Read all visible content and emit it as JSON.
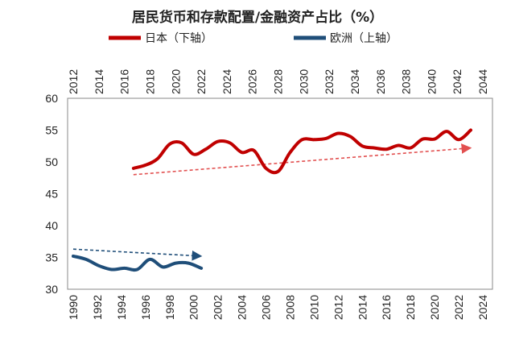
{
  "chart_data": {
    "type": "line",
    "title": "居民货币和存款配置/金融资产占比（%）",
    "ylim": [
      30,
      60
    ],
    "yticks": [
      "30",
      "35",
      "40",
      "45",
      "50",
      "55",
      "60"
    ],
    "bottom_axis": {
      "range": [
        1990,
        2024
      ],
      "ticks": [
        "1990",
        "1992",
        "1994",
        "1996",
        "1998",
        "2000",
        "2002",
        "2004",
        "2006",
        "2008",
        "2010",
        "2012",
        "2014",
        "2016",
        "2018",
        "2020",
        "2022",
        "2024"
      ]
    },
    "top_axis": {
      "range": [
        2012,
        2044
      ],
      "ticks": [
        "2012",
        "2014",
        "2016",
        "2018",
        "2020",
        "2022",
        "2024",
        "2026",
        "2028",
        "2030",
        "2032",
        "2034",
        "2036",
        "2038",
        "2040",
        "2042",
        "2044"
      ]
    },
    "series": [
      {
        "name": "日本（下轴）",
        "axis": "bottom",
        "color": "#c00000",
        "x": [
          1995,
          1996,
          1997,
          1998,
          1999,
          2000,
          2001,
          2002,
          2003,
          2004,
          2005,
          2006,
          2007,
          2008,
          2009,
          2010,
          2011,
          2012,
          2013,
          2014,
          2015,
          2016,
          2017,
          2018,
          2019,
          2020,
          2021,
          2022,
          2023
        ],
        "values": [
          49.0,
          49.5,
          50.5,
          52.8,
          53.0,
          51.2,
          52.0,
          53.2,
          53.0,
          51.5,
          51.8,
          49.0,
          48.5,
          51.5,
          53.5,
          53.5,
          53.7,
          54.5,
          54.0,
          52.5,
          52.2,
          52.0,
          52.6,
          52.2,
          53.6,
          53.6,
          54.8,
          53.5,
          55.0
        ],
        "trend": {
          "x": [
            1995,
            2023
          ],
          "values": [
            48.0,
            52.2
          ]
        }
      },
      {
        "name": "欧洲（上轴）",
        "axis": "top",
        "color": "#1f4e79",
        "x": [
          2012,
          2013,
          2014,
          2015,
          2016,
          2017,
          2018,
          2019,
          2020,
          2021,
          2022
        ],
        "values": [
          35.2,
          34.7,
          33.7,
          33.1,
          33.3,
          33.1,
          34.7,
          33.5,
          34.1,
          34.1,
          33.3
        ],
        "trend": {
          "x": [
            2012,
            2022
          ],
          "values": [
            36.3,
            35.2
          ]
        }
      }
    ]
  }
}
